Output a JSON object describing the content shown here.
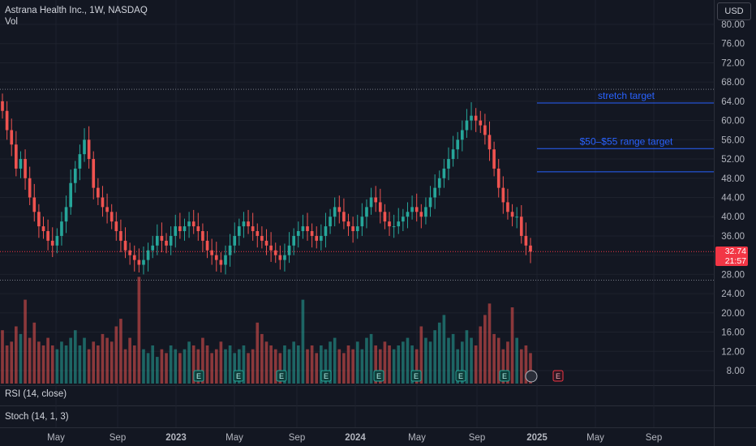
{
  "header": {
    "title": "Astrana Health Inc., 1W, NASDAQ",
    "vol_label": "Vol",
    "currency": "USD"
  },
  "panes": {
    "rsi_label": "RSI (14, close)",
    "stoch_label": "Stoch (14, 1, 3)"
  },
  "price_tag": {
    "price": "32.74",
    "countdown": "21:57"
  },
  "colors": {
    "bg": "#131722",
    "up": "#26a69a",
    "down": "#ef5350",
    "line": "#2962ff",
    "last": "#f23645"
  },
  "chart_data": {
    "type": "candlestick",
    "title": "Astrana Health Inc., 1W, NASDAQ",
    "y_axis": {
      "min": 8,
      "max": 80,
      "ticks": [
        "80.00",
        "76.00",
        "72.00",
        "68.00",
        "64.00",
        "60.00",
        "56.00",
        "52.00",
        "48.00",
        "44.00",
        "40.00",
        "36.00",
        "32.00",
        "28.00",
        "24.00",
        "20.00",
        "16.00",
        "12.00",
        "8.00"
      ]
    },
    "x_axis": {
      "ticks": [
        "May",
        "Sep",
        "2023",
        "May",
        "Sep",
        "2024",
        "May",
        "Sep",
        "2025",
        "May",
        "Sep"
      ]
    },
    "last_price": 32.74,
    "reference_lines": [
      {
        "price": 66.5,
        "style": "dotted"
      },
      {
        "price": 26.8,
        "style": "dotted"
      }
    ],
    "annotations": [
      {
        "text": "stretch target",
        "price": 65
      },
      {
        "text": "$50–$55 range target",
        "price": 55
      },
      {
        "text": "",
        "price": 50
      }
    ],
    "closes": [
      62,
      58,
      55,
      50,
      52,
      48,
      44,
      41,
      38,
      37,
      35,
      34,
      36,
      39,
      42,
      47,
      50,
      53,
      56,
      52,
      46,
      44,
      42,
      41,
      39,
      37,
      35,
      33,
      32,
      31,
      30,
      31,
      33,
      34,
      36,
      35,
      34,
      36,
      38,
      37,
      38,
      39,
      38,
      37,
      35,
      33,
      32,
      31,
      30,
      32,
      34,
      36,
      38,
      39,
      38,
      37,
      36,
      35,
      34,
      33,
      32,
      31,
      32,
      34,
      36,
      37,
      38,
      37,
      36,
      35,
      36,
      38,
      40,
      42,
      41,
      39,
      38,
      37,
      38,
      40,
      42,
      44,
      43,
      41,
      39,
      38,
      38,
      39,
      40,
      41,
      42,
      41,
      40,
      42,
      44,
      46,
      48,
      50,
      52,
      54,
      56,
      58,
      60,
      61,
      60,
      59,
      57,
      54,
      50,
      46,
      43,
      41,
      40,
      40,
      36,
      34,
      32.74
    ],
    "volumes": [
      14,
      10,
      11,
      15,
      13,
      22,
      12,
      16,
      11,
      10,
      12,
      10,
      9,
      11,
      10,
      12,
      14,
      10,
      12,
      9,
      11,
      10,
      13,
      12,
      11,
      15,
      17,
      9,
      12,
      10,
      28,
      9,
      8,
      10,
      7,
      9,
      8,
      10,
      9,
      8,
      9,
      11,
      10,
      9,
      12,
      10,
      8,
      9,
      11,
      9,
      10,
      8,
      9,
      10,
      8,
      9,
      16,
      13,
      11,
      10,
      9,
      8,
      10,
      9,
      11,
      10,
      22,
      9,
      10,
      8,
      10,
      9,
      11,
      12,
      9,
      8,
      10,
      9,
      11,
      9,
      12,
      13,
      10,
      9,
      11,
      10,
      9,
      10,
      11,
      12,
      10,
      9,
      15,
      12,
      11,
      14,
      16,
      18,
      12,
      13,
      9,
      11,
      14,
      12,
      10,
      15,
      18,
      21,
      13,
      12,
      9,
      11,
      20,
      12,
      9,
      10,
      8
    ]
  }
}
